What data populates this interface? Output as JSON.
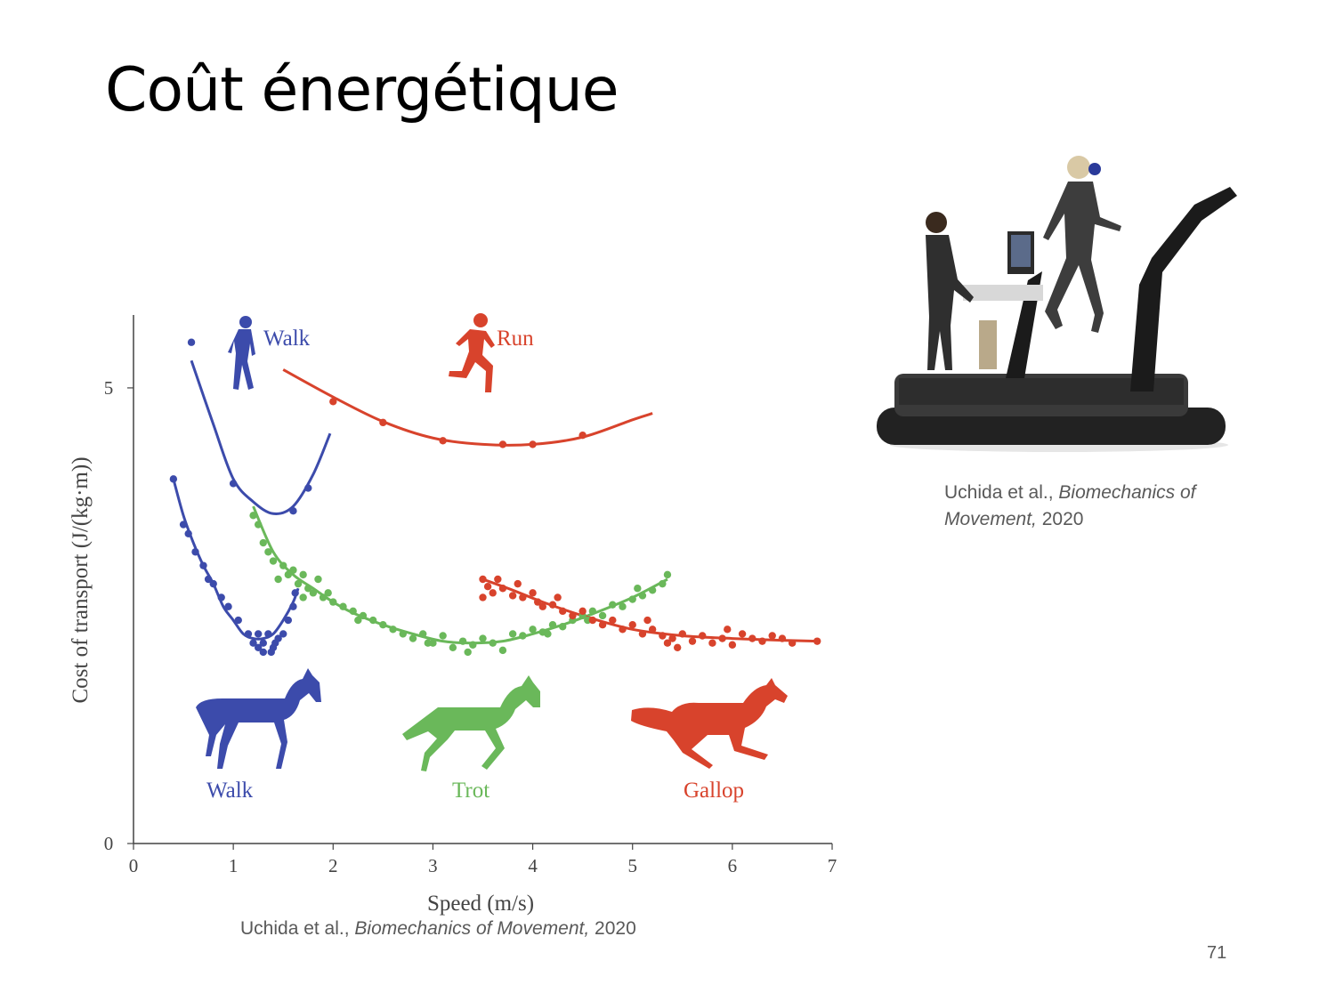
{
  "slide": {
    "title": "Coût énergétique",
    "page_number": "71"
  },
  "captions": {
    "chart": {
      "authors": "Uchida et al., ",
      "title": "Biomechanics of Movement,",
      "year": " 2020"
    },
    "photo": {
      "authors": "Uchida et al., ",
      "title": "Biomechanics of Movement,",
      "year": " 2020"
    }
  },
  "colors": {
    "walk": "#3c4bab",
    "run": "#d8432c",
    "trot": "#6ab85a",
    "axis": "#444444"
  },
  "icons": [
    "human-walk-icon",
    "human-run-icon",
    "horse-walk-icon",
    "horse-trot-icon",
    "horse-gallop-icon",
    "treadmill-photo"
  ],
  "chart_data": {
    "type": "scatter",
    "xlabel": "Speed (m/s)",
    "ylabel": "Cost of transport (J/(kg·m))",
    "xlim": [
      0,
      7
    ],
    "ylim": [
      0,
      5.8
    ],
    "x_ticks": [
      "0",
      "1",
      "2",
      "3",
      "4",
      "5",
      "6",
      "7"
    ],
    "y_ticks": [
      "0",
      "5"
    ],
    "grid": false,
    "labels": {
      "human_walk": "Walk",
      "human_run": "Run",
      "horse_walk": "Walk",
      "horse_trot": "Trot",
      "horse_gallop": "Gallop"
    },
    "series": [
      {
        "group": "human",
        "gait": "walk",
        "color": "#3c4bab",
        "fit": [
          [
            0.58,
            5.3
          ],
          [
            0.8,
            4.6
          ],
          [
            1.0,
            4.0
          ],
          [
            1.2,
            3.75
          ],
          [
            1.4,
            3.62
          ],
          [
            1.6,
            3.7
          ],
          [
            1.8,
            4.05
          ],
          [
            1.97,
            4.5
          ]
        ],
        "points": [
          [
            0.58,
            5.5
          ],
          [
            1.0,
            3.95
          ],
          [
            1.6,
            3.65
          ],
          [
            1.75,
            3.9
          ]
        ]
      },
      {
        "group": "human",
        "gait": "run",
        "color": "#d8432c",
        "fit": [
          [
            1.5,
            5.2
          ],
          [
            2.0,
            4.9
          ],
          [
            2.5,
            4.63
          ],
          [
            3.0,
            4.45
          ],
          [
            3.5,
            4.38
          ],
          [
            4.0,
            4.38
          ],
          [
            4.5,
            4.46
          ],
          [
            5.0,
            4.65
          ],
          [
            5.2,
            4.72
          ]
        ],
        "points": [
          [
            2.0,
            4.85
          ],
          [
            2.5,
            4.62
          ],
          [
            3.1,
            4.42
          ],
          [
            3.7,
            4.38
          ],
          [
            4.0,
            4.38
          ],
          [
            4.5,
            4.48
          ]
        ]
      },
      {
        "group": "horse",
        "gait": "walk",
        "color": "#3c4bab",
        "fit": [
          [
            0.4,
            4.0
          ],
          [
            0.5,
            3.6
          ],
          [
            0.6,
            3.3
          ],
          [
            0.7,
            3.05
          ],
          [
            0.8,
            2.85
          ],
          [
            0.9,
            2.6
          ],
          [
            1.0,
            2.45
          ],
          [
            1.1,
            2.3
          ],
          [
            1.2,
            2.25
          ],
          [
            1.3,
            2.25
          ],
          [
            1.4,
            2.3
          ],
          [
            1.5,
            2.45
          ],
          [
            1.6,
            2.65
          ],
          [
            1.65,
            2.8
          ]
        ],
        "points": [
          [
            0.4,
            4.0
          ],
          [
            0.5,
            3.5
          ],
          [
            0.55,
            3.4
          ],
          [
            0.62,
            3.2
          ],
          [
            0.7,
            3.05
          ],
          [
            0.75,
            2.9
          ],
          [
            0.8,
            2.85
          ],
          [
            0.88,
            2.7
          ],
          [
            0.95,
            2.6
          ],
          [
            1.05,
            2.45
          ],
          [
            1.15,
            2.3
          ],
          [
            1.2,
            2.2
          ],
          [
            1.25,
            2.15
          ],
          [
            1.3,
            2.2
          ],
          [
            1.35,
            2.3
          ],
          [
            1.4,
            2.15
          ],
          [
            1.45,
            2.25
          ],
          [
            1.5,
            2.3
          ],
          [
            1.55,
            2.45
          ],
          [
            1.6,
            2.6
          ],
          [
            1.62,
            2.75
          ],
          [
            1.25,
            2.3
          ],
          [
            1.3,
            2.1
          ],
          [
            1.38,
            2.1
          ],
          [
            1.42,
            2.2
          ]
        ]
      },
      {
        "group": "horse",
        "gait": "trot",
        "color": "#6ab85a",
        "fit": [
          [
            1.2,
            3.7
          ],
          [
            1.4,
            3.2
          ],
          [
            1.6,
            2.95
          ],
          [
            1.8,
            2.8
          ],
          [
            2.0,
            2.65
          ],
          [
            2.2,
            2.53
          ],
          [
            2.5,
            2.4
          ],
          [
            2.8,
            2.3
          ],
          [
            3.1,
            2.22
          ],
          [
            3.4,
            2.2
          ],
          [
            3.7,
            2.22
          ],
          [
            4.0,
            2.3
          ],
          [
            4.3,
            2.4
          ],
          [
            4.6,
            2.52
          ],
          [
            5.0,
            2.7
          ],
          [
            5.35,
            2.9
          ]
        ],
        "points": [
          [
            1.2,
            3.6
          ],
          [
            1.25,
            3.5
          ],
          [
            1.3,
            3.3
          ],
          [
            1.35,
            3.2
          ],
          [
            1.4,
            3.1
          ],
          [
            1.5,
            3.05
          ],
          [
            1.55,
            2.95
          ],
          [
            1.6,
            3.0
          ],
          [
            1.65,
            2.85
          ],
          [
            1.7,
            2.95
          ],
          [
            1.75,
            2.8
          ],
          [
            1.8,
            2.75
          ],
          [
            1.85,
            2.9
          ],
          [
            1.9,
            2.7
          ],
          [
            1.95,
            2.75
          ],
          [
            2.0,
            2.65
          ],
          [
            2.1,
            2.6
          ],
          [
            2.2,
            2.55
          ],
          [
            2.3,
            2.5
          ],
          [
            2.4,
            2.45
          ],
          [
            2.5,
            2.4
          ],
          [
            2.6,
            2.35
          ],
          [
            2.7,
            2.3
          ],
          [
            2.8,
            2.25
          ],
          [
            2.9,
            2.3
          ],
          [
            3.0,
            2.2
          ],
          [
            3.1,
            2.28
          ],
          [
            3.2,
            2.15
          ],
          [
            3.3,
            2.22
          ],
          [
            3.4,
            2.18
          ],
          [
            3.5,
            2.25
          ],
          [
            3.6,
            2.2
          ],
          [
            3.7,
            2.12
          ],
          [
            3.8,
            2.3
          ],
          [
            3.9,
            2.28
          ],
          [
            4.0,
            2.35
          ],
          [
            4.1,
            2.32
          ],
          [
            4.2,
            2.4
          ],
          [
            4.3,
            2.38
          ],
          [
            4.4,
            2.45
          ],
          [
            4.5,
            2.5
          ],
          [
            4.6,
            2.55
          ],
          [
            4.7,
            2.5
          ],
          [
            4.8,
            2.62
          ],
          [
            4.9,
            2.6
          ],
          [
            5.0,
            2.68
          ],
          [
            5.1,
            2.72
          ],
          [
            5.2,
            2.78
          ],
          [
            5.3,
            2.85
          ],
          [
            5.35,
            2.95
          ],
          [
            1.45,
            2.9
          ],
          [
            1.7,
            2.7
          ],
          [
            2.25,
            2.45
          ],
          [
            2.95,
            2.2
          ],
          [
            3.35,
            2.1
          ],
          [
            4.15,
            2.3
          ],
          [
            4.55,
            2.45
          ],
          [
            5.05,
            2.8
          ]
        ]
      },
      {
        "group": "horse",
        "gait": "gallop",
        "color": "#d8432c",
        "fit": [
          [
            3.5,
            2.9
          ],
          [
            3.8,
            2.78
          ],
          [
            4.1,
            2.65
          ],
          [
            4.5,
            2.5
          ],
          [
            5.0,
            2.35
          ],
          [
            5.5,
            2.28
          ],
          [
            6.0,
            2.25
          ],
          [
            6.5,
            2.23
          ],
          [
            6.85,
            2.22
          ]
        ],
        "points": [
          [
            3.5,
            2.9
          ],
          [
            3.55,
            2.82
          ],
          [
            3.6,
            2.75
          ],
          [
            3.7,
            2.8
          ],
          [
            3.8,
            2.72
          ],
          [
            3.85,
            2.85
          ],
          [
            3.9,
            2.7
          ],
          [
            4.0,
            2.75
          ],
          [
            4.05,
            2.65
          ],
          [
            4.1,
            2.6
          ],
          [
            4.2,
            2.62
          ],
          [
            4.3,
            2.55
          ],
          [
            4.4,
            2.5
          ],
          [
            4.5,
            2.55
          ],
          [
            4.6,
            2.45
          ],
          [
            4.7,
            2.4
          ],
          [
            4.8,
            2.45
          ],
          [
            4.9,
            2.35
          ],
          [
            5.0,
            2.4
          ],
          [
            5.1,
            2.3
          ],
          [
            5.2,
            2.35
          ],
          [
            5.3,
            2.28
          ],
          [
            5.35,
            2.2
          ],
          [
            5.4,
            2.25
          ],
          [
            5.5,
            2.3
          ],
          [
            5.6,
            2.22
          ],
          [
            5.7,
            2.28
          ],
          [
            5.8,
            2.2
          ],
          [
            5.9,
            2.25
          ],
          [
            6.0,
            2.18
          ],
          [
            6.1,
            2.3
          ],
          [
            6.2,
            2.25
          ],
          [
            6.3,
            2.22
          ],
          [
            6.4,
            2.28
          ],
          [
            6.5,
            2.25
          ],
          [
            6.6,
            2.2
          ],
          [
            6.85,
            2.22
          ],
          [
            3.5,
            2.7
          ],
          [
            3.65,
            2.9
          ],
          [
            4.25,
            2.7
          ],
          [
            5.15,
            2.45
          ],
          [
            5.45,
            2.15
          ],
          [
            5.95,
            2.35
          ]
        ]
      }
    ]
  }
}
